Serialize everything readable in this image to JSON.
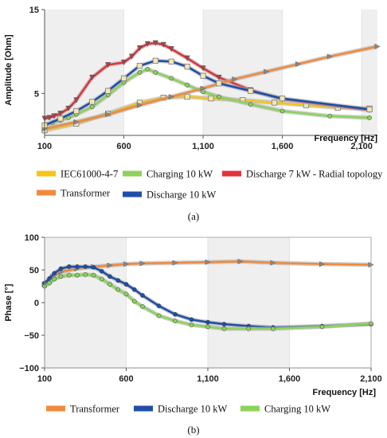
{
  "chart_data": [
    {
      "type": "line",
      "caption": "(a)",
      "xlabel": "Frequency [Hz]",
      "ylabel": "Amplitude [Ohm]",
      "xlim": [
        100,
        2200
      ],
      "ylim": [
        0,
        15
      ],
      "x_ticks": [
        100,
        600,
        1100,
        1600,
        2100
      ],
      "x_tick_labels": [
        "100",
        "600",
        "1,100",
        "1,600",
        "2,100"
      ],
      "y_ticks": [
        5,
        15
      ],
      "y_tick_labels": [
        "5",
        "15"
      ],
      "shaded_bands": [
        [
          100,
          600
        ],
        [
          1100,
          1600
        ],
        [
          2100,
          2200
        ]
      ],
      "legend_position": "bottom",
      "series": [
        {
          "name": "IEC61000-4-7",
          "color": "#f5c518",
          "marker": "square",
          "x": [
            100,
            300,
            500,
            700,
            850,
            1000,
            1150,
            1350,
            1550,
            1750,
            1950,
            2150
          ],
          "y": [
            0.6,
            1.4,
            2.6,
            3.9,
            4.5,
            4.6,
            4.4,
            4.2,
            3.9,
            3.6,
            3.3,
            3.2
          ]
        },
        {
          "name": "Charging 10 kW",
          "color": "#8cd35a",
          "marker": "circle",
          "x": [
            100,
            150,
            200,
            250,
            300,
            400,
            500,
            600,
            700,
            750,
            800,
            900,
            1000,
            1100,
            1200,
            1400,
            1600,
            1900,
            2150
          ],
          "y": [
            1.3,
            1.5,
            1.8,
            2.1,
            2.5,
            3.4,
            4.8,
            6.3,
            7.5,
            7.9,
            7.5,
            6.8,
            6.0,
            5.2,
            4.6,
            3.7,
            2.9,
            2.3,
            2.1
          ]
        },
        {
          "name": "Discharge 7 kW - Radial topology",
          "color": "#e0333a",
          "marker": "triangle-down",
          "x": [
            100,
            130,
            160,
            200,
            250,
            300,
            400,
            500,
            600,
            650,
            700,
            750,
            800,
            850,
            900,
            1000,
            1100,
            1200,
            1400,
            1600,
            2150
          ],
          "y": [
            2.0,
            2.1,
            2.3,
            2.6,
            3.2,
            4.2,
            6.9,
            8.4,
            8.7,
            9.4,
            10.4,
            10.9,
            11.0,
            10.8,
            10.3,
            9.2,
            8.0,
            6.9,
            5.4,
            4.3,
            3.0
          ]
        },
        {
          "name": "Transformer",
          "color": "#f08a3c",
          "marker": "triangle-right",
          "x": [
            100,
            300,
            500,
            700,
            900,
            1100,
            1300,
            1500,
            1700,
            1900,
            2200
          ],
          "y": [
            0.8,
            1.6,
            2.5,
            3.6,
            4.6,
            5.6,
            6.7,
            7.6,
            8.5,
            9.4,
            10.6
          ]
        },
        {
          "name": "Discharge 10 kW",
          "color": "#1f4fa8",
          "marker": "square",
          "x": [
            100,
            200,
            300,
            400,
            500,
            600,
            700,
            800,
            900,
            1000,
            1100,
            1200,
            1400,
            1600,
            2150
          ],
          "y": [
            1.2,
            2.0,
            2.9,
            4.0,
            5.3,
            6.8,
            8.3,
            8.9,
            8.8,
            8.2,
            7.1,
            6.2,
            5.3,
            4.4,
            3.1
          ]
        }
      ]
    },
    {
      "type": "line",
      "caption": "(b)",
      "xlabel": "Frequency [Hz]",
      "ylabel": "Phase [°]",
      "xlim": [
        100,
        2100
      ],
      "ylim": [
        -100,
        100
      ],
      "x_ticks": [
        100,
        600,
        1100,
        1600,
        2100
      ],
      "x_tick_labels": [
        "100",
        "600",
        "1,100",
        "1,600",
        "2,100"
      ],
      "y_ticks": [
        -100,
        -50,
        0,
        50,
        100
      ],
      "y_tick_labels": [
        "−100",
        "−50",
        "0",
        "50",
        "100"
      ],
      "shaded_bands": [
        [
          100,
          600
        ],
        [
          1100,
          1600
        ]
      ],
      "legend_position": "bottom",
      "series": [
        {
          "name": "Transformer",
          "color": "#f08a3c",
          "marker": "triangle-right",
          "x": [
            100,
            150,
            200,
            300,
            400,
            500,
            600,
            700,
            900,
            1100,
            1300,
            1500,
            1800,
            2100
          ],
          "y": [
            28,
            40,
            47,
            52,
            55,
            57,
            59,
            60,
            61,
            62,
            63,
            61,
            59,
            58
          ]
        },
        {
          "name": "Discharge 10 kW",
          "color": "#1f4fa8",
          "marker": "circle",
          "x": [
            100,
            130,
            160,
            200,
            250,
            300,
            350,
            400,
            450,
            500,
            550,
            600,
            650,
            700,
            800,
            900,
            1000,
            1100,
            1200,
            1350,
            1500,
            1800,
            2100
          ],
          "y": [
            30,
            37,
            45,
            52,
            55,
            55,
            55,
            54,
            48,
            40,
            34,
            28,
            20,
            11,
            -5,
            -18,
            -26,
            -30,
            -33,
            -36,
            -38,
            -36,
            -33
          ]
        },
        {
          "name": "Charging 10 kW",
          "color": "#8cd35a",
          "marker": "circle",
          "x": [
            100,
            130,
            160,
            200,
            250,
            300,
            350,
            400,
            450,
            500,
            550,
            600,
            650,
            700,
            800,
            900,
            1000,
            1100,
            1200,
            1350,
            1500,
            1800,
            2100
          ],
          "y": [
            25,
            30,
            36,
            40,
            42,
            42,
            43,
            42,
            36,
            28,
            20,
            13,
            2,
            -6,
            -20,
            -28,
            -34,
            -37,
            -40,
            -40,
            -40,
            -37,
            -32
          ]
        }
      ]
    }
  ]
}
